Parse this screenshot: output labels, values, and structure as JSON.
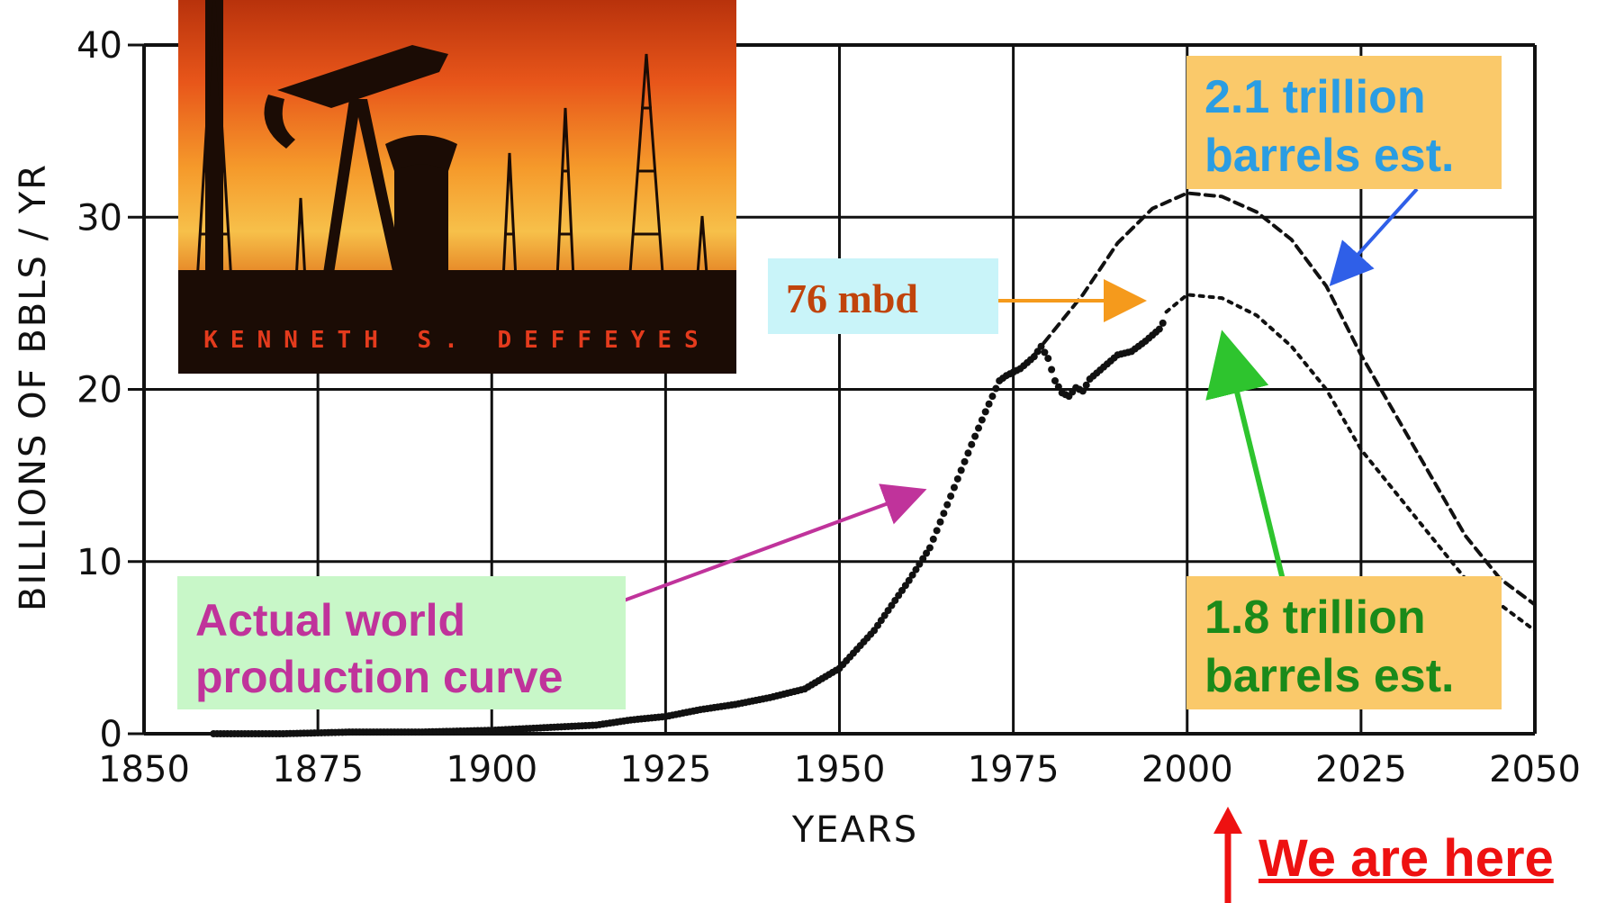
{
  "chart_data": {
    "type": "line",
    "xlabel": "YEARS",
    "ylabel": "BILLIONS OF BBLS / YR",
    "xlim": [
      1850,
      2050
    ],
    "ylim": [
      0,
      40
    ],
    "x_ticks": [
      "1850",
      "1875",
      "1900",
      "1925",
      "1950",
      "1975",
      "2000",
      "2025",
      "2050"
    ],
    "y_ticks": [
      "0",
      "10",
      "20",
      "30",
      "40"
    ],
    "grid": true,
    "series": [
      {
        "name": "Actual world production curve",
        "style": "dots",
        "x": [
          1860,
          1870,
          1880,
          1890,
          1900,
          1905,
          1910,
          1915,
          1920,
          1925,
          1930,
          1935,
          1940,
          1945,
          1950,
          1955,
          1960,
          1963,
          1966,
          1969,
          1971,
          1973,
          1974,
          1976,
          1978,
          1979,
          1980,
          1981,
          1982,
          1983,
          1984,
          1985,
          1986,
          1988,
          1990,
          1992,
          1994,
          1996,
          1997
        ],
        "y": [
          0.0,
          0.0,
          0.1,
          0.1,
          0.2,
          0.3,
          0.4,
          0.5,
          0.8,
          1.0,
          1.4,
          1.7,
          2.1,
          2.6,
          3.8,
          6.0,
          8.9,
          10.8,
          13.8,
          16.8,
          18.7,
          20.5,
          20.8,
          21.2,
          21.9,
          22.5,
          21.8,
          20.5,
          19.8,
          19.6,
          20.1,
          19.9,
          20.6,
          21.3,
          22.0,
          22.2,
          22.8,
          23.5,
          24.2
        ]
      },
      {
        "name": "2.1 trillion barrels est.",
        "style": "dashed",
        "x": [
          1978,
          1985,
          1990,
          1995,
          2000,
          2005,
          2010,
          2015,
          2020,
          2025,
          2030,
          2035,
          2040,
          2045,
          2050
        ],
        "y": [
          22.0,
          25.5,
          28.5,
          30.5,
          31.4,
          31.2,
          30.3,
          28.7,
          26.0,
          22.0,
          18.5,
          15.0,
          11.5,
          9.0,
          7.5
        ]
      },
      {
        "name": "1.8 trillion barrels est.",
        "style": "dotted",
        "x": [
          1997,
          2000,
          2005,
          2010,
          2015,
          2020,
          2025,
          2030,
          2035,
          2040,
          2045,
          2050
        ],
        "y": [
          24.5,
          25.5,
          25.3,
          24.3,
          22.5,
          20.0,
          16.5,
          14.0,
          11.5,
          9.0,
          7.5,
          6.0
        ]
      }
    ]
  },
  "annotations": {
    "book_author": "KENNETH S. DEFFEYES",
    "estimate_high": [
      "2.1 trillion",
      "barrels est."
    ],
    "estimate_low": [
      "1.8 trillion",
      "barrels est."
    ],
    "actual": [
      "Actual world",
      "production curve"
    ],
    "mbd": "76 mbd",
    "here": "We are here"
  },
  "colors": {
    "blue_text": "#2a9de3",
    "green_text": "#1a8a1a",
    "pink_text": "#c0339b",
    "mbd_text": "#c0440c",
    "here_text": "#ee1111",
    "box_orange": "#fac96a",
    "box_green": "#c8f7c8",
    "box_cyan": "#c9f4f9"
  }
}
